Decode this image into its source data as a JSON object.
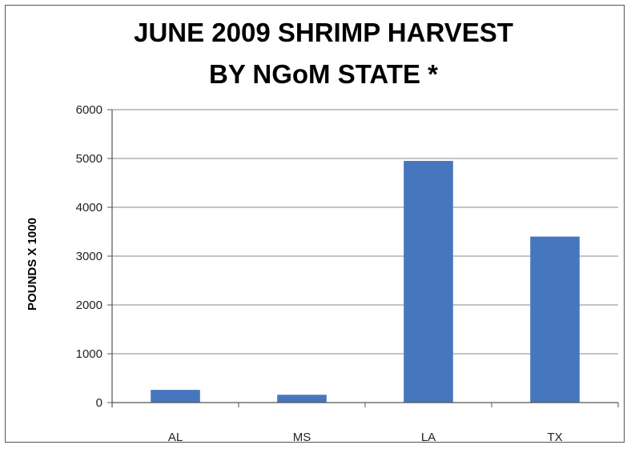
{
  "chart_data": {
    "type": "bar",
    "title": [
      "JUNE 2009 SHRIMP HARVEST",
      "BY NGoM STATE *"
    ],
    "xlabel": "",
    "ylabel": "POUNDS X 1000",
    "categories": [
      "AL",
      "MS",
      "LA",
      "TX"
    ],
    "values": [
      260,
      160,
      4950,
      3400
    ],
    "ylim": [
      0,
      6000
    ],
    "yticks": [
      "0",
      "1000",
      "2000",
      "3000",
      "4000",
      "5000",
      "6000"
    ],
    "grid": true,
    "legend": "none",
    "colors": {
      "bar": "#4677BE",
      "grid": "#8a8a8a",
      "axis": "#555555"
    }
  }
}
